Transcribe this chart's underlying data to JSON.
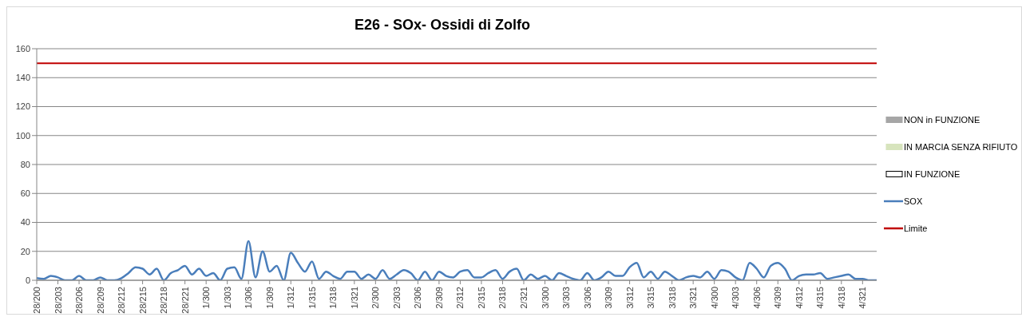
{
  "chart_data": {
    "type": "line",
    "title": "E26 - SOx- Ossidi di Zolfo",
    "categories": [
      "28/200",
      null,
      null,
      "28/203",
      null,
      null,
      "28/206",
      null,
      null,
      "28/209",
      null,
      null,
      "28/212",
      null,
      null,
      "28/215",
      null,
      null,
      "28/218",
      null,
      null,
      "28/221",
      null,
      null,
      "1/300",
      null,
      null,
      "1/303",
      null,
      null,
      "1/306",
      null,
      null,
      "1/309",
      null,
      null,
      "1/312",
      null,
      null,
      "1/315",
      null,
      null,
      "1/318",
      null,
      null,
      "1/321",
      null,
      null,
      "2/300",
      null,
      null,
      "2/303",
      null,
      null,
      "2/306",
      null,
      null,
      "2/309",
      null,
      null,
      "2/312",
      null,
      null,
      "2/315",
      null,
      null,
      "2/318",
      null,
      null,
      "2/321",
      null,
      null,
      "3/300",
      null,
      null,
      "3/303",
      null,
      null,
      "3/306",
      null,
      null,
      "3/309",
      null,
      null,
      "3/312",
      null,
      null,
      "3/315",
      null,
      null,
      "3/318",
      null,
      null,
      "3/321",
      null,
      null,
      "4/300",
      null,
      null,
      "4/303",
      null,
      null,
      "4/306",
      null,
      null,
      "4/309",
      null,
      null,
      "4/312",
      null,
      null,
      "4/315",
      null,
      null,
      "4/318",
      null,
      null,
      "4/321",
      null,
      null
    ],
    "series": [
      {
        "name": "NON in FUNZIONE",
        "type": "area",
        "color": "#a6a6a6",
        "values": [
          null,
          null,
          null,
          null,
          null,
          null,
          null,
          null,
          null,
          null,
          null,
          null,
          null,
          null,
          null,
          null,
          null,
          null,
          null,
          null,
          null,
          null,
          null,
          null,
          null,
          null,
          null,
          null,
          null,
          null,
          null,
          null,
          null,
          null,
          null,
          null,
          null,
          null,
          null,
          null,
          null,
          null,
          null,
          null,
          null,
          null,
          null,
          null,
          null,
          null,
          null,
          null,
          null,
          null,
          null,
          null,
          null,
          null,
          null,
          null,
          null,
          null,
          null,
          null,
          null,
          null,
          null,
          null,
          null,
          null,
          null,
          null,
          null,
          null,
          null,
          null,
          null,
          null,
          null,
          null,
          null,
          null,
          null,
          null,
          null,
          null,
          null,
          null,
          null,
          null,
          null,
          null,
          null,
          null,
          null,
          null,
          null,
          null,
          null,
          null,
          null,
          null,
          null,
          null,
          null,
          null,
          null,
          null,
          null,
          null,
          null,
          null,
          null,
          null,
          null,
          null,
          null,
          null,
          null,
          null
        ]
      },
      {
        "name": "IN MARCIA SENZA RIFIUTO",
        "type": "area",
        "color": "#d7e4bd",
        "values": [
          null,
          null,
          null,
          null,
          null,
          null,
          null,
          null,
          null,
          null,
          null,
          null,
          null,
          null,
          null,
          null,
          null,
          null,
          null,
          null,
          null,
          null,
          null,
          null,
          null,
          null,
          null,
          null,
          null,
          null,
          null,
          null,
          null,
          null,
          null,
          null,
          null,
          null,
          null,
          null,
          null,
          null,
          null,
          null,
          null,
          null,
          null,
          null,
          null,
          null,
          null,
          null,
          null,
          null,
          null,
          null,
          null,
          null,
          null,
          null,
          null,
          null,
          null,
          null,
          null,
          null,
          null,
          null,
          null,
          null,
          null,
          null,
          null,
          null,
          null,
          null,
          null,
          null,
          null,
          null,
          null,
          null,
          null,
          null,
          null,
          null,
          null,
          null,
          null,
          null,
          null,
          null,
          null,
          null,
          null,
          null,
          null,
          null,
          null,
          null,
          null,
          null,
          null,
          null,
          null,
          null,
          null,
          null,
          null,
          null,
          null,
          null,
          null,
          null,
          null,
          null,
          null,
          null,
          null,
          null
        ]
      },
      {
        "name": "IN FUNZIONE",
        "type": "area",
        "color": "#ffffff",
        "values": [
          null,
          null,
          null,
          null,
          null,
          null,
          null,
          null,
          null,
          null,
          null,
          null,
          null,
          null,
          null,
          null,
          null,
          null,
          null,
          null,
          null,
          null,
          null,
          null,
          null,
          null,
          null,
          null,
          null,
          null,
          null,
          null,
          null,
          null,
          null,
          null,
          null,
          null,
          null,
          null,
          null,
          null,
          null,
          null,
          null,
          null,
          null,
          null,
          null,
          null,
          null,
          null,
          null,
          null,
          null,
          null,
          null,
          null,
          null,
          null,
          null,
          null,
          null,
          null,
          null,
          null,
          null,
          null,
          null,
          null,
          null,
          null,
          null,
          null,
          null,
          null,
          null,
          null,
          null,
          null,
          null,
          null,
          null,
          null,
          null,
          null,
          null,
          null,
          null,
          null,
          null,
          null,
          null,
          null,
          null,
          null,
          null,
          null,
          null,
          null,
          null,
          null,
          null,
          null,
          null,
          null,
          null,
          null,
          null,
          null,
          null,
          null,
          null,
          null,
          null,
          null,
          null,
          null,
          null,
          null
        ]
      },
      {
        "name": "SOX",
        "type": "line",
        "color": "#4a7ebb",
        "values": [
          1.5,
          1,
          3,
          2,
          0,
          0,
          3,
          0,
          0,
          2,
          0,
          0,
          1.5,
          5,
          9,
          8,
          4,
          8,
          0,
          5,
          7,
          10,
          4,
          8,
          3,
          5,
          0,
          8,
          9,
          1,
          27,
          2,
          20,
          6,
          10,
          0,
          19,
          12,
          6,
          13,
          1,
          6,
          3,
          1,
          6,
          6,
          1,
          4,
          1,
          7,
          1,
          4,
          7,
          5,
          0,
          6,
          0,
          6,
          3,
          2,
          6,
          7,
          2,
          2,
          5,
          7,
          1,
          6,
          8,
          0,
          4,
          1,
          3,
          0,
          5,
          3,
          1,
          0,
          5,
          0,
          2,
          6,
          3,
          3,
          9,
          12,
          2,
          6,
          1,
          6,
          3,
          0,
          2,
          3,
          2,
          6,
          1,
          7,
          6,
          2,
          0,
          12,
          8,
          2,
          10,
          12,
          8,
          0,
          3,
          4,
          4,
          5,
          1,
          2,
          3,
          4,
          1,
          1,
          0,
          0
        ]
      }
    ],
    "ref_lines": [
      {
        "axis": "y",
        "value": 150,
        "label": "Limite",
        "color": "#c00000"
      }
    ],
    "ylim": [
      0,
      160
    ],
    "yticks": [
      0,
      20,
      40,
      60,
      80,
      100,
      120,
      140,
      160
    ],
    "grid": "y",
    "legend": "right",
    "marker": "none",
    "line_style": "solid"
  }
}
